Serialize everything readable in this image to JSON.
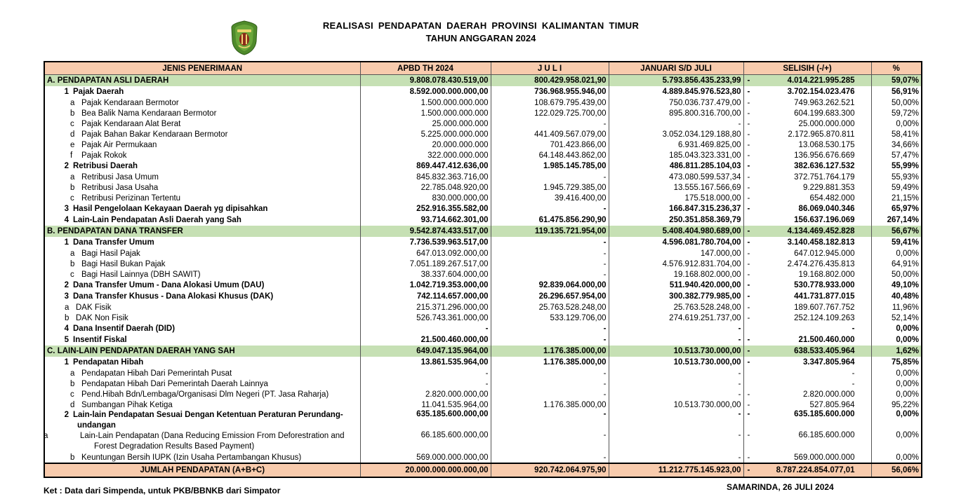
{
  "header": {
    "title": "REALISASI PENDAPATAN DAERAH PROVINSI KALIMANTAN TIMUR",
    "subtitle": "TAHUN ANGGARAN 2024",
    "logo": "kalimantan-timur-province-emblem"
  },
  "colors": {
    "header_bg": "#f8cbad",
    "section_bg": "#c6e0b4",
    "total_bg": "#f8cbad"
  },
  "table": {
    "columns": [
      "JENIS PENERIMAAN",
      "APBD TH 2024",
      "J U L I",
      "JANUARI S/D JULI",
      "SELISIH (-/+)",
      "%"
    ],
    "rows": [
      {
        "type": "section",
        "no": "",
        "label": "A. PENDAPATAN ASLI DAERAH",
        "apbd": "9.808.078.430.519,00",
        "juli": "800.429.958.021,90",
        "jan": "5.793.856.435.233,99",
        "neg": "-",
        "selisih": "4.014.221.995.285",
        "pct": "59,07%"
      },
      {
        "type": "bold",
        "lvl": 1,
        "no": "1",
        "label": "Pajak Daerah",
        "apbd": "8.592.000.000.000,00",
        "juli": "736.968.955.946,00",
        "jan": "4.889.845.976.523,80",
        "neg": "-",
        "selisih": "3.702.154.023.476",
        "pct": "56,91%"
      },
      {
        "type": "normal",
        "lvl": 2,
        "no": "a",
        "label": "Pajak Kendaraan Bermotor",
        "apbd": "1.500.000.000.000",
        "juli": "108.679.795.439,00",
        "jan": "750.036.737.479,00",
        "neg": "-",
        "selisih": "749.963.262.521",
        "pct": "50,00%"
      },
      {
        "type": "normal",
        "lvl": 2,
        "no": "b",
        "label": "Bea Balik Nama Kendaraan Bermotor",
        "apbd": "1.500.000.000.000",
        "juli": "122.029.725.700,00",
        "jan": "895.800.316.700,00",
        "neg": "-",
        "selisih": "604.199.683.300",
        "pct": "59,72%"
      },
      {
        "type": "normal",
        "lvl": 2,
        "no": "c",
        "label": "Pajak Kendaraan Alat Berat",
        "apbd": "25.000.000.000",
        "juli": "-",
        "jan": "-",
        "neg": "-",
        "selisih": "25.000.000.000",
        "pct": "0,00%"
      },
      {
        "type": "normal",
        "lvl": 2,
        "no": "d",
        "label": "Pajak Bahan Bakar Kendaraan Bermotor",
        "apbd": "5.225.000.000.000",
        "juli": "441.409.567.079,00",
        "jan": "3.052.034.129.188,80",
        "neg": "-",
        "selisih": "2.172.965.870.811",
        "pct": "58,41%"
      },
      {
        "type": "normal",
        "lvl": 2,
        "no": "e",
        "label": "Pajak Air Permukaan",
        "apbd": "20.000.000.000",
        "juli": "701.423.866,00",
        "jan": "6.931.469.825,00",
        "neg": "-",
        "selisih": "13.068.530.175",
        "pct": "34,66%"
      },
      {
        "type": "normal",
        "lvl": 2,
        "no": "f",
        "label": "Pajak Rokok",
        "apbd": "322.000.000.000",
        "juli": "64.148.443.862,00",
        "jan": "185.043.323.331,00",
        "neg": "-",
        "selisih": "136.956.676.669",
        "pct": "57,47%"
      },
      {
        "type": "bold",
        "lvl": 1,
        "no": "2",
        "label": "Retribusi Daerah",
        "apbd": "869.447.412.636,00",
        "juli": "1.985.145.785,00",
        "jan": "486.811.285.104,03",
        "neg": "-",
        "selisih": "382.636.127.532",
        "pct": "55,99%"
      },
      {
        "type": "normal",
        "lvl": 2,
        "no": "a",
        "label": "Retribusi Jasa Umum",
        "apbd": "845.832.363.716,00",
        "juli": "-",
        "jan": "473.080.599.537,34",
        "neg": "-",
        "selisih": "372.751.764.179",
        "pct": "55,93%"
      },
      {
        "type": "normal",
        "lvl": 2,
        "no": "b",
        "label": "Retribusi Jasa Usaha",
        "apbd": "22.785.048.920,00",
        "juli": "1.945.729.385,00",
        "jan": "13.555.167.566,69",
        "neg": "-",
        "selisih": "9.229.881.353",
        "pct": "59,49%"
      },
      {
        "type": "normal",
        "lvl": 2,
        "no": "c",
        "label": "Retribusi Perizinan Tertentu",
        "apbd": "830.000.000,00",
        "juli": "39.416.400,00",
        "jan": "175.518.000,00",
        "neg": "-",
        "selisih": "654.482.000",
        "pct": "21,15%"
      },
      {
        "type": "bold",
        "lvl": 1,
        "no": "3",
        "label": "Hasil Pengelolaan Kekayaan Daerah yg dipisahkan",
        "apbd": "252.916.355.582,00",
        "juli": "-",
        "jan": "166.847.315.236,37",
        "neg": "-",
        "selisih": "86.069.040.346",
        "pct": "65,97%"
      },
      {
        "type": "bold",
        "lvl": 1,
        "no": "4",
        "label": "Lain-Lain Pendapatan Asli Daerah yang Sah",
        "apbd": "93.714.662.301,00",
        "juli": "61.475.856.290,90",
        "jan": "250.351.858.369,79",
        "neg": "",
        "selisih": "156.637.196.069",
        "pct": "267,14%"
      },
      {
        "type": "section",
        "no": "",
        "label": "B. PENDAPATAN DANA TRANSFER",
        "apbd": "9.542.874.433.517,00",
        "juli": "119.135.721.954,00",
        "jan": "5.408.404.980.689,00",
        "neg": "-",
        "selisih": "4.134.469.452.828",
        "pct": "56,67%"
      },
      {
        "type": "bold",
        "lvl": 1,
        "no": "1",
        "label": "Dana Transfer Umum",
        "apbd": "7.736.539.963.517,00",
        "juli": "-",
        "jan": "4.596.081.780.704,00",
        "neg": "-",
        "selisih": "3.140.458.182.813",
        "pct": "59,41%"
      },
      {
        "type": "normal",
        "lvl": 2,
        "no": "a",
        "label": "Bagi Hasil Pajak",
        "apbd": "647.013.092.000,00",
        "juli": "-",
        "jan": "147.000,00",
        "neg": "-",
        "selisih": "647.012.945.000",
        "pct": "0,00%"
      },
      {
        "type": "normal",
        "lvl": 2,
        "no": "b",
        "label": "Bagi Hasil Bukan Pajak",
        "apbd": "7.051.189.267.517,00",
        "juli": "-",
        "jan": "4.576.912.831.704,00",
        "neg": "-",
        "selisih": "2.474.276.435.813",
        "pct": "64,91%"
      },
      {
        "type": "normal",
        "lvl": 2,
        "no": "c",
        "label": "Bagi Hasil Lainnya (DBH SAWIT)",
        "apbd": "38.337.604.000,00",
        "juli": "-",
        "jan": "19.168.802.000,00",
        "neg": "-",
        "selisih": "19.168.802.000",
        "pct": "50,00%"
      },
      {
        "type": "bold",
        "lvl": 1,
        "no": "2",
        "label": "Dana Transfer Umum - Dana Alokasi Umum (DAU)",
        "apbd": "1.042.719.353.000,00",
        "juli": "92.839.064.000,00",
        "jan": "511.940.420.000,00",
        "neg": "-",
        "selisih": "530.778.933.000",
        "pct": "49,10%"
      },
      {
        "type": "bold",
        "lvl": 1,
        "no": "3",
        "label": "Dana Transfer Khusus - Dana Alokasi Khusus (DAK)",
        "apbd": "742.114.657.000,00",
        "juli": "26.296.657.954,00",
        "jan": "300.382.779.985,00",
        "neg": "-",
        "selisih": "441.731.877.015",
        "pct": "40,48%"
      },
      {
        "type": "normal",
        "lvl": 3,
        "no": "a",
        "label": "DAK Fisik",
        "apbd": "215.371.296.000,00",
        "juli": "25.763.528.248,00",
        "jan": "25.763.528.248,00",
        "neg": "-",
        "selisih": "189.607.767.752",
        "pct": "11,96%"
      },
      {
        "type": "normal",
        "lvl": 3,
        "no": "b",
        "label": "DAK Non Fisik",
        "apbd": "526.743.361.000,00",
        "juli": "533.129.706,00",
        "jan": "274.619.251.737,00",
        "neg": "-",
        "selisih": "252.124.109.263",
        "pct": "52,14%"
      },
      {
        "type": "bold",
        "lvl": 1,
        "no": "4",
        "label": "Dana Insentif Daerah (DID)",
        "apbd": "-",
        "juli": "-",
        "jan": "-",
        "neg": "",
        "selisih": "-",
        "pct": "0,00%"
      },
      {
        "type": "bold",
        "lvl": 1,
        "no": "5",
        "label": "Insentif Fiskal",
        "apbd": "21.500.460.000,00",
        "juli": "-",
        "jan": "-",
        "neg": "-",
        "selisih": "21.500.460.000",
        "pct": "0,00%"
      },
      {
        "type": "section",
        "no": "",
        "label": "C. LAIN-LAIN PENDAPATAN DAERAH YANG SAH",
        "apbd": "649.047.135.964,00",
        "juli": "1.176.385.000,00",
        "jan": "10.513.730.000,00",
        "neg": "-",
        "selisih": "638.533.405.964",
        "pct": "1,62%"
      },
      {
        "type": "bold",
        "lvl": 1,
        "no": "1",
        "label": "Pendapatan Hibah",
        "apbd": "13.861.535.964,00",
        "juli": "1.176.385.000,00",
        "jan": "10.513.730.000,00",
        "neg": "-",
        "selisih": "3.347.805.964",
        "pct": "75,85%"
      },
      {
        "type": "normal",
        "lvl": 2,
        "no": "a",
        "label": "Pendapatan Hibah Dari Pemerintah Pusat",
        "apbd": "-",
        "juli": "-",
        "jan": "-",
        "neg": "",
        "selisih": "-",
        "pct": "0,00%"
      },
      {
        "type": "normal",
        "lvl": 2,
        "no": "b",
        "label": "Pendapatan Hibah Dari Pemerintah Daerah Lainnya",
        "apbd": "-",
        "juli": "-",
        "jan": "-",
        "neg": "",
        "selisih": "-",
        "pct": "0,00%"
      },
      {
        "type": "normal",
        "lvl": 2,
        "no": "c",
        "label": "Pend.Hibah Bdn/Lembaga/Organisasi Dlm Negeri (PT. Jasa Raharja)",
        "apbd": "2.820.000.000,00",
        "juli": "-",
        "jan": "-",
        "neg": "-",
        "selisih": "2.820.000.000",
        "pct": "0,00%"
      },
      {
        "type": "normal",
        "lvl": 2,
        "no": "d",
        "label": "Sumbangan Pihak Ketiga",
        "apbd": "11.041.535.964,00",
        "juli": "1.176.385.000,00",
        "jan": "10.513.730.000,00",
        "neg": "-",
        "selisih": "527.805.964",
        "pct": "95,22%"
      },
      {
        "type": "bold two",
        "lvl": 1,
        "no": "2",
        "label": "Lain-lain Pendapatan Sesuai Dengan Ketentuan Peraturan Perundang-undangan",
        "apbd": "635.185.600.000,00",
        "juli": "-",
        "jan": "-",
        "neg": "-",
        "selisih": "635.185.600.000",
        "pct": "0,00%"
      },
      {
        "type": "normal two",
        "lvl": 2,
        "no": "a",
        "label": "Lain-Lain Pendapatan (Dana Reducing Emission From Deforestration and Forest Degradation Results Based Payment)",
        "apbd": "66.185.600.000,00",
        "juli": "-",
        "jan": "-",
        "neg": "-",
        "selisih": "66.185.600.000",
        "pct": "0,00%"
      },
      {
        "type": "normal",
        "lvl": 2,
        "no": "b",
        "label": "Keuntungan Bersih IUPK (Izin Usaha Pertambangan Khusus)",
        "apbd": "569.000.000.000,00",
        "juli": "-",
        "jan": "-",
        "neg": "-",
        "selisih": "569.000.000.000",
        "pct": "0,00%"
      },
      {
        "type": "total",
        "no": "",
        "label": "JUMLAH PENDAPATAN (A+B+C)",
        "apbd": "20.000.000.000.000,00",
        "juli": "920.742.064.975,90",
        "jan": "11.212.775.145.923,00",
        "neg": "-",
        "selisih": "8.787.224.854.077,01",
        "pct": "56,06%"
      }
    ]
  },
  "footer": {
    "note": "Ket : Data dari Simpenda, untuk PKB/BBNKB dari Simpator",
    "place_date": "SAMARINDA,  26 JULI 2024"
  }
}
